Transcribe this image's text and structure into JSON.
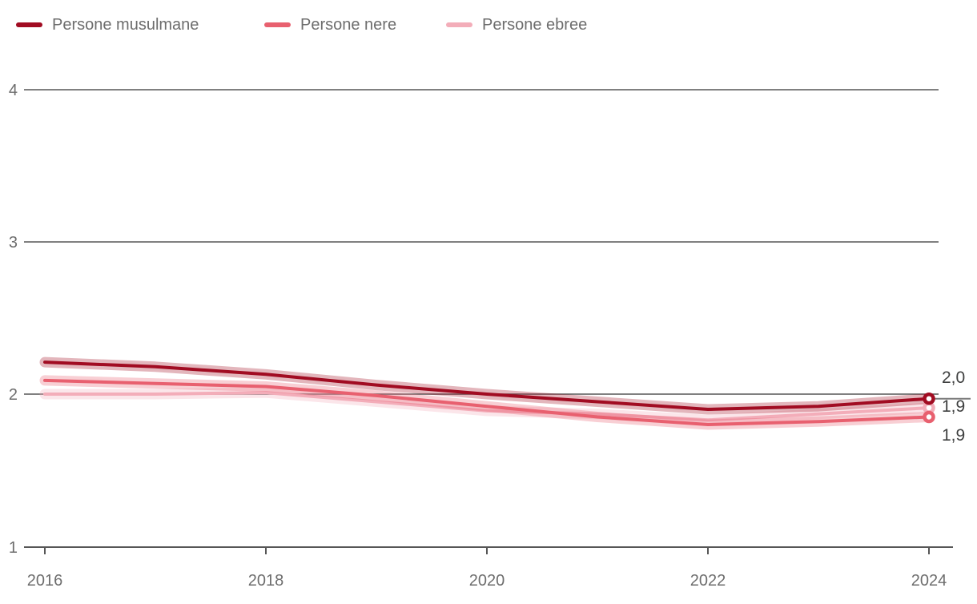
{
  "chart_data": {
    "type": "line",
    "title": "",
    "xlabel": "",
    "ylabel": "",
    "x": [
      2016,
      2017,
      2018,
      2019,
      2020,
      2021,
      2022,
      2023,
      2024
    ],
    "xlim": [
      2016,
      2024
    ],
    "ylim": [
      1,
      4
    ],
    "x_ticks": [
      2016,
      2018,
      2020,
      2022,
      2024
    ],
    "x_tick_labels": [
      "2016",
      "2018",
      "2020",
      "2022",
      "2024"
    ],
    "y_ticks": [
      4,
      3,
      2,
      1
    ],
    "y_tick_labels": [
      "4",
      "3",
      "2",
      "1"
    ],
    "grid": "horizontal gridlines at y=2,3,4; bottom axis at y=1",
    "legend_position": "top",
    "decimal_separator": ",",
    "series": [
      {
        "name": "Persone musulmane",
        "color": "#a10c22",
        "values": [
          2.21,
          2.18,
          2.13,
          2.06,
          2.0,
          1.95,
          1.9,
          1.92,
          1.97
        ],
        "end_label": "2,0",
        "has_confidence_band": true
      },
      {
        "name": "Persone nere",
        "color": "#e8606f",
        "values": [
          2.09,
          2.07,
          2.05,
          1.99,
          1.92,
          1.85,
          1.8,
          1.82,
          1.85
        ],
        "end_label": "1,9",
        "has_confidence_band": true
      },
      {
        "name": "Persone ebree",
        "color": "#f3adb9",
        "values": [
          2.0,
          2.0,
          2.01,
          1.95,
          1.89,
          1.87,
          1.83,
          1.87,
          1.91
        ],
        "end_label": "1,9",
        "has_confidence_band": true
      }
    ]
  },
  "colors": {
    "background": "#ffffff",
    "axis_text": "#6d6d6d",
    "value_label_text": "#3f4040",
    "gridline": "#565656",
    "axis_line": "#565656",
    "leader_line": "#7b7b7b",
    "marker_fill": "#ffffff"
  }
}
